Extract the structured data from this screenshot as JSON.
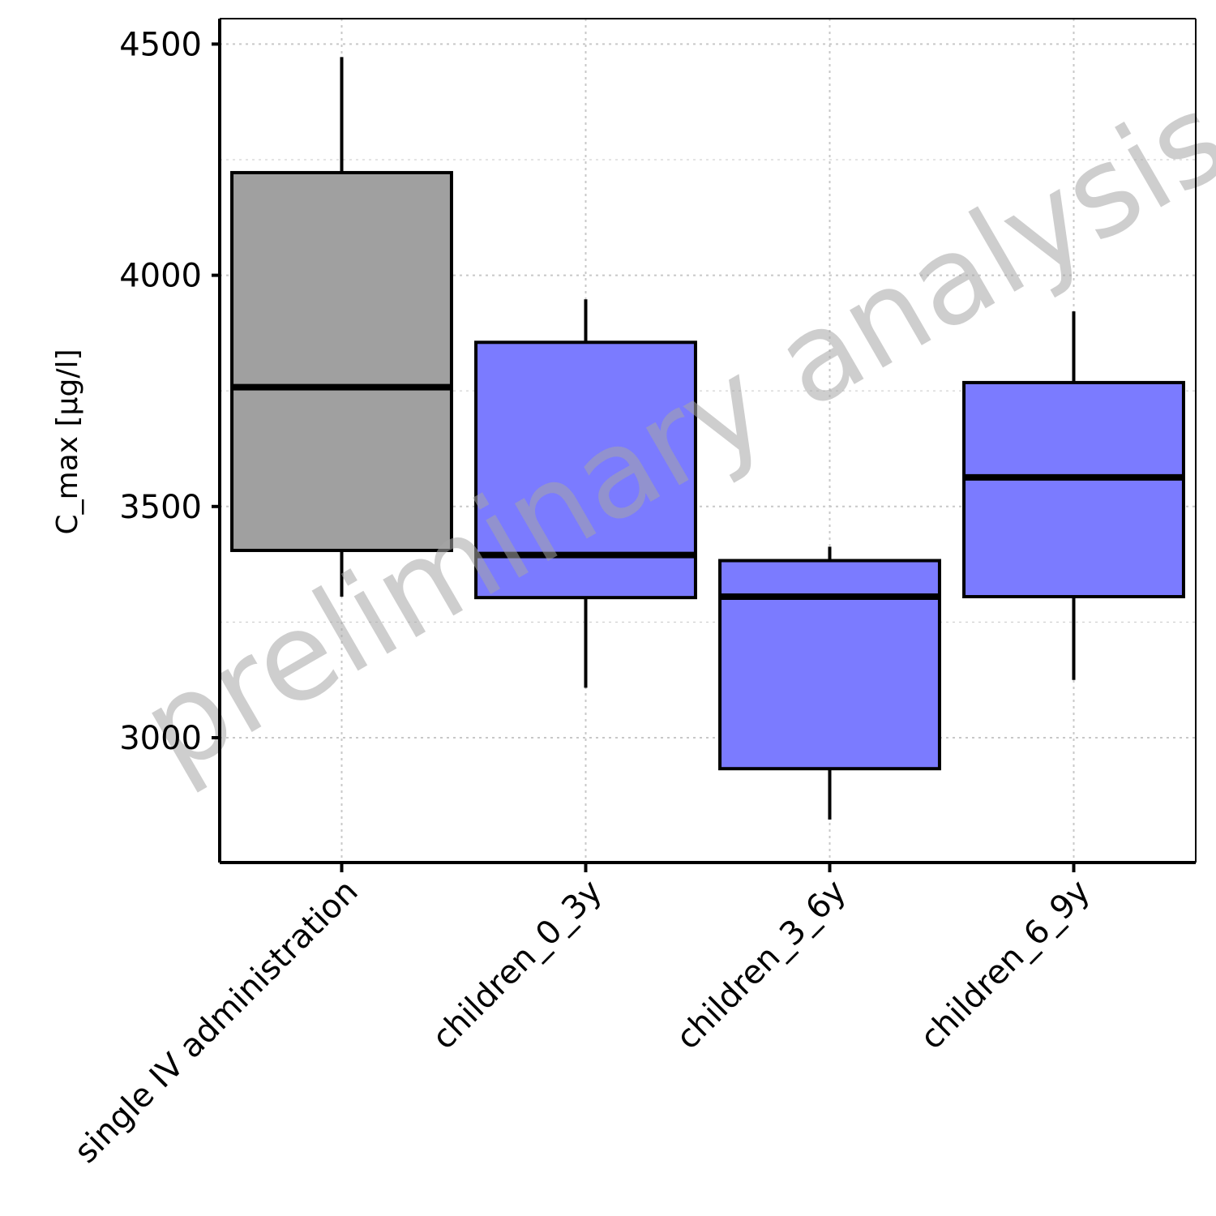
{
  "chart_data": {
    "type": "box",
    "title": "",
    "xlabel": "",
    "ylabel": "C_max [µg/l]",
    "ylim": [
      2730,
      4555
    ],
    "yticks": [
      3000,
      3500,
      4000,
      4500
    ],
    "ytick_labels": [
      "3000",
      "3500",
      "4000",
      "4500"
    ],
    "grid": true,
    "categories": [
      "single IV administration",
      "children_0_3y",
      "children_3_6y",
      "children_6_9y"
    ],
    "boxes": [
      {
        "category": "single IV administration",
        "whisker_low": 3305,
        "q1": 3405,
        "median": 3758,
        "q3": 4222,
        "whisker_high": 4472,
        "fill": "#a0a0a0"
      },
      {
        "category": "children_0_3y",
        "whisker_low": 3108,
        "q1": 3303,
        "median": 3395,
        "q3": 3855,
        "whisker_high": 3948,
        "fill": "#7b7bff"
      },
      {
        "category": "children_3_6y",
        "whisker_low": 2823,
        "q1": 2933,
        "median": 3305,
        "q3": 3383,
        "whisker_high": 3413,
        "fill": "#7b7bff"
      },
      {
        "category": "children_6_9y",
        "whisker_low": 3125,
        "q1": 3305,
        "median": 3563,
        "q3": 3768,
        "whisker_high": 3922,
        "fill": "#7b7bff"
      }
    ],
    "watermark": "preliminary analysis",
    "colors": {
      "reference_fill": "#a0a0a0",
      "group_fill": "#7b7bff",
      "outline": "#000000",
      "grid": "#c8c8c8",
      "watermark": "#a6a6a6"
    }
  }
}
